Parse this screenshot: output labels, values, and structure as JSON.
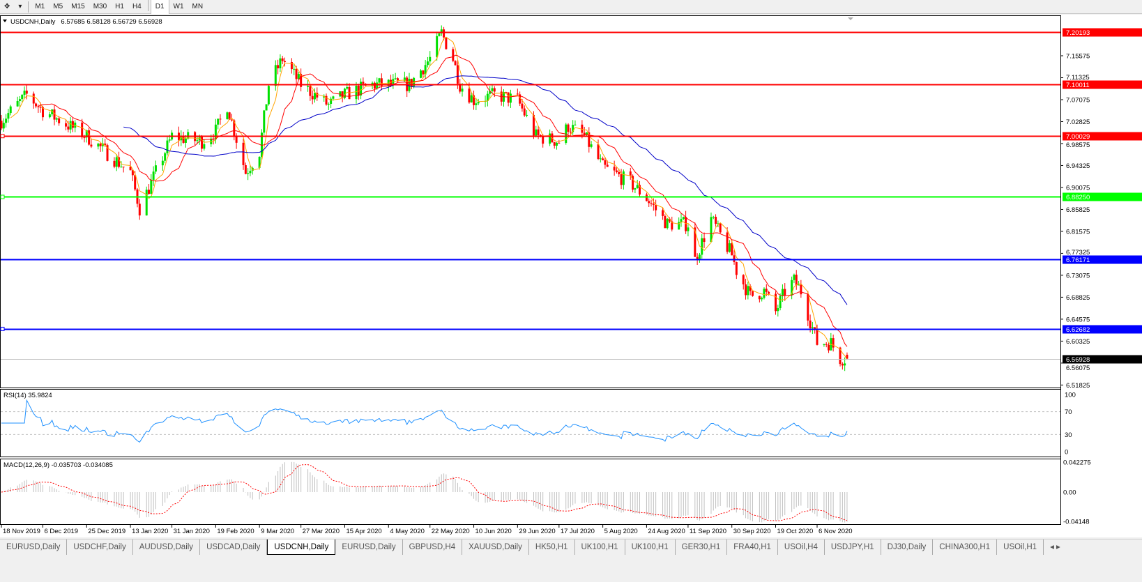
{
  "toolbar": {
    "icons": [
      "crosshair-icon",
      "chevron-down-icon"
    ],
    "timeframes": [
      "M1",
      "M5",
      "M15",
      "M30",
      "H1",
      "H4",
      "D1",
      "W1",
      "MN"
    ],
    "active": "D1"
  },
  "chart": {
    "title": "USDCNH,Daily",
    "ohlc": "6.57685 6.58128 6.56729 6.56928",
    "colors": {
      "bull": "#00e000",
      "bear": "#ff0000",
      "ma_fast": "#ffa500",
      "ma_mid": "#ff0000",
      "ma_slow": "#0000c8",
      "rsi": "#1e90ff",
      "macd_hist": "#c0c0c0",
      "macd_signal": "#ff0000"
    }
  },
  "chart_data": [
    {
      "type": "candlestick",
      "title": "USDCNH,Daily",
      "ylim": [
        6.51825,
        7.22
      ],
      "price_ticks": [
        "7.15575",
        "7.11325",
        "7.07075",
        "7.02825",
        "6.98575",
        "6.94325",
        "6.90075",
        "6.85825",
        "6.81575",
        "6.77325",
        "6.73075",
        "6.68825",
        "6.64575",
        "6.60325",
        "6.56075",
        "6.51825"
      ],
      "date_ticks": [
        "18 Nov 2019",
        "6 Dec 2019",
        "25 Dec 2019",
        "13 Jan 2020",
        "31 Jan 2020",
        "19 Feb 2020",
        "9 Mar 2020",
        "27 Mar 2020",
        "15 Apr 2020",
        "4 May 2020",
        "22 May 2020",
        "10 Jun 2020",
        "29 Jun 2020",
        "17 Jul 2020",
        "5 Aug 2020",
        "24 Aug 2020",
        "11 Sep 2020",
        "30 Sep 2020",
        "19 Oct 2020",
        "6 Nov 2020"
      ],
      "levels": [
        {
          "value": "7.20193",
          "color": "#ff0000"
        },
        {
          "value": "7.10011",
          "color": "#ff0000"
        },
        {
          "value": "7.00029",
          "color": "#ff0000"
        },
        {
          "value": "6.88250",
          "color": "#00ff00"
        },
        {
          "value": "6.76171",
          "color": "#0000ff"
        },
        {
          "value": "6.62682",
          "color": "#0000ff"
        },
        {
          "value": "6.56928",
          "color": "#000000",
          "current": true
        }
      ],
      "approx_closes": [
        [
          "2019-11-18",
          7.03
        ],
        [
          "2019-11-29",
          7.08
        ],
        [
          "2019-12-06",
          7.05
        ],
        [
          "2019-12-25",
          7.0
        ],
        [
          "2020-01-13",
          6.93
        ],
        [
          "2020-01-17",
          6.86
        ],
        [
          "2020-01-31",
          7.0
        ],
        [
          "2020-02-13",
          6.99
        ],
        [
          "2020-02-19",
          7.01
        ],
        [
          "2020-02-24",
          7.06
        ],
        [
          "2020-03-03",
          6.93
        ],
        [
          "2020-03-09",
          6.97
        ],
        [
          "2020-03-13",
          7.1
        ],
        [
          "2020-03-19",
          7.15
        ],
        [
          "2020-03-27",
          7.1
        ],
        [
          "2020-04-08",
          7.06
        ],
        [
          "2020-04-15",
          7.08
        ],
        [
          "2020-04-27",
          7.1
        ],
        [
          "2020-05-04",
          7.1
        ],
        [
          "2020-05-13",
          7.1
        ],
        [
          "2020-05-22",
          7.15
        ],
        [
          "2020-05-27",
          7.2
        ],
        [
          "2020-06-01",
          7.15
        ],
        [
          "2020-06-04",
          7.1
        ],
        [
          "2020-06-10",
          7.07
        ],
        [
          "2020-06-19",
          7.08
        ],
        [
          "2020-06-29",
          7.07
        ],
        [
          "2020-07-07",
          7.0
        ],
        [
          "2020-07-17",
          6.99
        ],
        [
          "2020-07-21",
          7.02
        ],
        [
          "2020-07-28",
          7.0
        ],
        [
          "2020-08-05",
          6.94
        ],
        [
          "2020-08-17",
          6.91
        ],
        [
          "2020-08-24",
          6.88
        ],
        [
          "2020-09-02",
          6.83
        ],
        [
          "2020-09-11",
          6.83
        ],
        [
          "2020-09-14",
          6.76
        ],
        [
          "2020-09-21",
          6.84
        ],
        [
          "2020-09-30",
          6.77
        ],
        [
          "2020-10-02",
          6.74
        ],
        [
          "2020-10-08",
          6.69
        ],
        [
          "2020-10-14",
          6.7
        ],
        [
          "2020-10-19",
          6.66
        ],
        [
          "2020-10-23",
          6.7
        ],
        [
          "2020-10-27",
          6.72
        ],
        [
          "2020-10-30",
          6.7
        ],
        [
          "2020-11-06",
          6.6
        ],
        [
          "2020-11-12",
          6.6
        ],
        [
          "2020-11-16",
          6.57
        ],
        [
          "2020-11-19",
          6.56928
        ]
      ]
    },
    {
      "type": "line",
      "title": "RSI(14) 35.9824",
      "ylim": [
        0,
        100
      ],
      "ticks": [
        "100",
        "70",
        "30",
        "0"
      ],
      "levels": [
        70,
        30
      ],
      "last": 35.9824
    },
    {
      "type": "bar",
      "title": "MACD(12,26,9) -0.035703 -0.034085",
      "ylim": [
        -0.04148,
        0.042275
      ],
      "ticks": [
        "0.042275",
        "0.00",
        "-0.04148"
      ],
      "last_macd": -0.035703,
      "last_signal": -0.034085
    }
  ],
  "tabs": [
    "EURUSD,Daily",
    "USDCHF,Daily",
    "AUDUSD,Daily",
    "USDCAD,Daily",
    "USDCNH,Daily",
    "EURUSD,Daily",
    "GBPUSD,H4",
    "XAUUSD,Daily",
    "HK50,H1",
    "UK100,H1",
    "UK100,H1",
    "GER30,H1",
    "FRA40,H1",
    "USOil,H4",
    "USDJPY,H1",
    "DJ30,Daily",
    "CHINA300,H1",
    "USOil,H1"
  ],
  "active_tab": "USDCNH,Daily"
}
